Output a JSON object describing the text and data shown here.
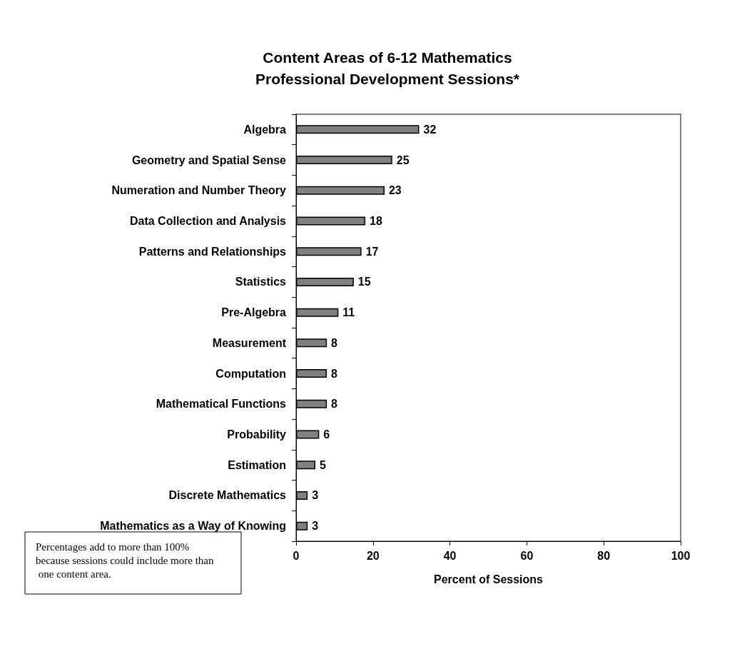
{
  "chart_data": {
    "type": "bar",
    "orientation": "horizontal",
    "title": "Content Areas of 6-12 Mathematics\nProfessional Development Sessions*",
    "categories": [
      "Algebra",
      "Geometry and Spatial Sense",
      "Numeration and Number Theory",
      "Data Collection and Analysis",
      "Patterns and Relationships",
      "Statistics",
      "Pre-Algebra",
      "Measurement",
      "Computation",
      "Mathematical Functions",
      "Probability",
      "Estimation",
      "Discrete Mathematics",
      "Mathematics as a Way of Knowing"
    ],
    "values": [
      32,
      25,
      23,
      18,
      17,
      15,
      11,
      8,
      8,
      8,
      6,
      5,
      3,
      3
    ],
    "color": "#808080",
    "xlim": [
      0,
      100
    ],
    "xticks": [
      0,
      20,
      40,
      60,
      80,
      100
    ],
    "xlabel": "Percent of Sessions",
    "data_labels": true,
    "grid": false,
    "annotations": [
      "Percentages add to more than 100% because sessions could include more than one content area."
    ]
  }
}
